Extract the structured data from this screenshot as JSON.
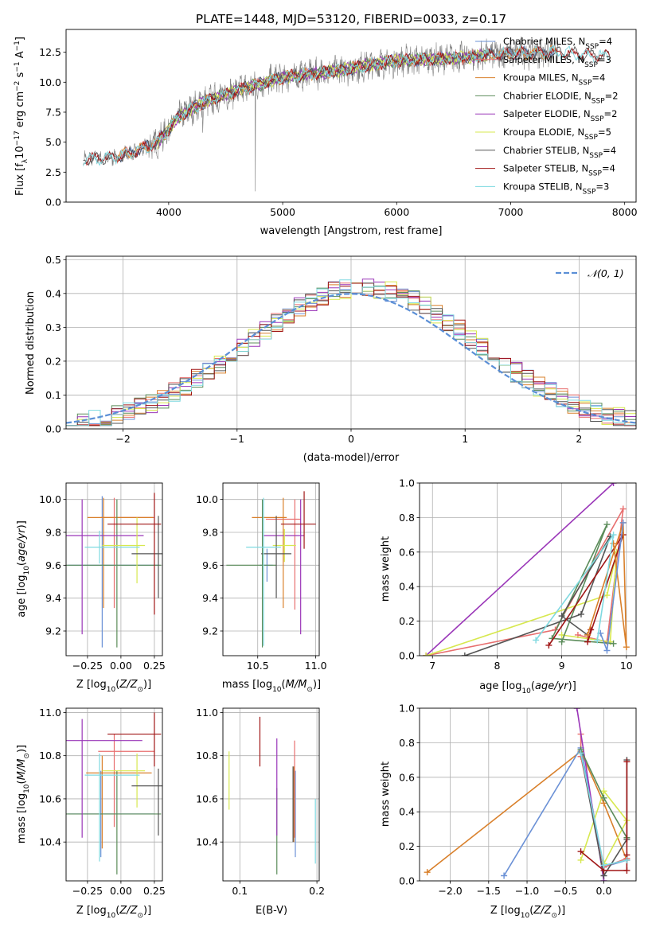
{
  "title": "PLATE=1448, MJD=53120, FIBERID=0033, z=0.17",
  "colors": {
    "chabrier_miles": "#6b91d6",
    "salpeter_miles": "#e86f6f",
    "kroupa_miles": "#d9802b",
    "chabrier_elodie": "#5b8c5a",
    "salpeter_elodie": "#9a36b8",
    "kroupa_elodie": "#d7e84f",
    "chabrier_stelib": "#555555",
    "salpeter_stelib": "#a01515",
    "kroupa_stelib": "#7fd9e0",
    "data": "#808080",
    "normal": "#5b8fd6"
  },
  "chart_data": [
    {
      "id": "spectrum",
      "type": "line",
      "xlabel": "wavelength [Angstrom, rest frame]",
      "ylabel": "Flux [f",
      "xlim": [
        3100,
        8100
      ],
      "ylim": [
        0,
        14.4
      ],
      "xticks": [
        4000,
        5000,
        6000,
        7000,
        8000
      ],
      "yticks": [
        0.0,
        2.5,
        5.0,
        7.5,
        10.0,
        12.5
      ],
      "legend": [
        "Chabrier MILES, N",
        "Salpeter MILES, N",
        "Kroupa MILES, N",
        "Chabrier ELODIE, N",
        "Salpeter ELODIE, N",
        "Kroupa ELODIE, N",
        "Chabrier STELIB, N",
        "Salpeter STELIB, N",
        "Kroupa STELIB, N"
      ],
      "legend_nssp": [
        4,
        3,
        4,
        2,
        2,
        5,
        4,
        4,
        3
      ],
      "continuum": {
        "x": [
          3250,
          3500,
          3700,
          3900,
          4100,
          4300,
          4600,
          5000,
          5500,
          6000,
          6500,
          7000,
          7400,
          7800
        ],
        "y": [
          3.6,
          3.7,
          4.2,
          5.0,
          7.2,
          8.3,
          9.3,
          10.4,
          11.0,
          11.8,
          12.0,
          12.4,
          12.5,
          12.2
        ]
      },
      "grid": false,
      "legend_placement": "top-right"
    },
    {
      "id": "residuals",
      "type": "step",
      "xlabel": "(data-model)/error",
      "ylabel": "Normed distribution",
      "xlim": [
        -2.5,
        2.5
      ],
      "ylim": [
        0,
        0.51
      ],
      "xticks": [
        -2,
        -1,
        0,
        1,
        2
      ],
      "yticks": [
        0.0,
        0.1,
        0.2,
        0.3,
        0.4,
        0.5
      ],
      "normal_label": "𝒩(0, 1)",
      "grid": true,
      "legend_placement": "top-right"
    },
    {
      "id": "age_vs_Z",
      "type": "errorbar",
      "xlabel": "Z [log",
      "ylabel": "age  [log",
      "xlim": [
        -0.41,
        0.31
      ],
      "ylim": [
        9.05,
        10.1
      ],
      "xticks": [
        -0.25,
        0.0,
        0.25
      ],
      "yticks": [
        9.2,
        9.4,
        9.6,
        9.8,
        10.0
      ],
      "points": [
        {
          "c": "chabrier_miles",
          "x": -0.14,
          "y": 9.6,
          "xerr": [
            0.26,
            0.42
          ],
          "yerr": [
            0.5,
            0.42
          ]
        },
        {
          "c": "salpeter_miles",
          "x": -0.05,
          "y": 9.89,
          "xerr": [
            0.1,
            0.3
          ],
          "yerr": [
            0.55,
            0.12
          ]
        },
        {
          "c": "kroupa_miles",
          "x": -0.13,
          "y": 9.89,
          "xerr": [
            0.12,
            0.37
          ],
          "yerr": [
            0.55,
            0.12
          ]
        },
        {
          "c": "chabrier_elodie",
          "x": -0.03,
          "y": 9.6,
          "xerr": [
            0.38,
            0.33
          ],
          "yerr": [
            0.5,
            0.4
          ]
        },
        {
          "c": "salpeter_elodie",
          "x": -0.29,
          "y": 9.78,
          "xerr": [
            0.12,
            0.46
          ],
          "yerr": [
            0.6,
            0.22
          ]
        },
        {
          "c": "kroupa_elodie",
          "x": 0.12,
          "y": 9.72,
          "xerr": [
            0.26,
            0.06
          ],
          "yerr": [
            0.23,
            0.17
          ]
        },
        {
          "c": "chabrier_stelib",
          "x": 0.28,
          "y": 9.67,
          "xerr": [
            0.2,
            0.05
          ],
          "yerr": [
            0.27,
            0.23
          ]
        },
        {
          "c": "salpeter_stelib",
          "x": 0.25,
          "y": 9.85,
          "xerr": [
            0.35,
            0.05
          ],
          "yerr": [
            0.55,
            0.19
          ]
        },
        {
          "c": "kroupa_stelib",
          "x": -0.16,
          "y": 9.71,
          "xerr": [
            0.11,
            0.3
          ],
          "yerr": [
            0.1,
            0.1
          ]
        }
      ]
    },
    {
      "id": "age_vs_mass",
      "type": "errorbar",
      "xlabel": "mass [log",
      "ylabel": "",
      "xlim": [
        10.2,
        11.03
      ],
      "ylim": [
        9.05,
        10.1
      ],
      "xticks": [
        10.5,
        11.0
      ],
      "yticks": [
        9.2,
        9.4,
        9.6,
        9.8,
        10.0
      ],
      "points": [
        {
          "c": "chabrier_miles",
          "x": 10.58,
          "y": 9.6,
          "xerr": [
            0.06,
            0.05
          ],
          "yerr": [
            0.1,
            0.1
          ]
        },
        {
          "c": "salpeter_miles",
          "x": 10.82,
          "y": 9.88,
          "xerr": [
            0.25,
            0.05
          ],
          "yerr": [
            0.55,
            0.12
          ]
        },
        {
          "c": "kroupa_miles",
          "x": 10.72,
          "y": 9.89,
          "xerr": [
            0.27,
            0.03
          ],
          "yerr": [
            0.55,
            0.12
          ]
        },
        {
          "c": "chabrier_elodie",
          "x": 10.54,
          "y": 9.6,
          "xerr": [
            0.31,
            0.12
          ],
          "yerr": [
            0.5,
            0.4
          ]
        },
        {
          "c": "salpeter_elodie",
          "x": 10.87,
          "y": 9.78,
          "xerr": [
            0.32,
            0.03
          ],
          "yerr": [
            0.6,
            0.22
          ]
        },
        {
          "c": "kroupa_elodie",
          "x": 10.73,
          "y": 9.72,
          "xerr": [
            0.1,
            0.1
          ],
          "yerr": [
            0.1,
            0.1
          ]
        },
        {
          "c": "chabrier_stelib",
          "x": 10.66,
          "y": 9.67,
          "xerr": [
            0.13,
            0.13
          ],
          "yerr": [
            0.27,
            0.23
          ]
        },
        {
          "c": "salpeter_stelib",
          "x": 10.9,
          "y": 9.85,
          "xerr": [
            0.2,
            0.1
          ],
          "yerr": [
            0.15,
            0.2
          ]
        },
        {
          "c": "kroupa_stelib",
          "x": 10.55,
          "y": 9.71,
          "xerr": [
            0.15,
            0.15
          ],
          "yerr": [
            0.6,
            0.3
          ]
        }
      ]
    },
    {
      "id": "mass_weight_vs_age",
      "type": "line",
      "xlabel": "age  [log",
      "ylabel": "mass weight",
      "xlim": [
        6.8,
        10.15
      ],
      "ylim": [
        0,
        1.0
      ],
      "xticks": [
        7,
        8,
        9,
        10
      ],
      "yticks": [
        0.0,
        0.2,
        0.4,
        0.6,
        0.8,
        1.0
      ],
      "grid": true,
      "series": [
        {
          "c": "salpeter_elodie",
          "x": [
            6.9,
            9.8
          ],
          "y": [
            0.0,
            1.0
          ]
        },
        {
          "c": "salpeter_miles",
          "x": [
            6.9,
            8.9,
            9.95,
            9.7,
            9.25
          ],
          "y": [
            0.0,
            0.15,
            0.85,
            0.08,
            0.12
          ]
        },
        {
          "c": "kroupa_elodie",
          "x": [
            6.9,
            9.7,
            9.85,
            9.75,
            9.0
          ],
          "y": [
            0.0,
            0.35,
            0.6,
            0.08,
            0.12
          ]
        },
        {
          "c": "chabrier_elodie",
          "x": [
            9.0,
            9.7,
            8.85,
            9.8
          ],
          "y": [
            0.08,
            0.76,
            0.1,
            0.07
          ]
        },
        {
          "c": "chabrier_stelib",
          "x": [
            7.5,
            9.3,
            9.75,
            9.0,
            9.4
          ],
          "y": [
            0.0,
            0.24,
            0.69,
            0.23,
            0.12
          ]
        },
        {
          "c": "salpeter_stelib",
          "x": [
            8.8,
            9.95,
            9.4,
            9.45
          ],
          "y": [
            0.06,
            0.7,
            0.08,
            0.15
          ]
        },
        {
          "c": "kroupa_miles",
          "x": [
            9.8,
            10.0,
            9.95,
            9.4
          ],
          "y": [
            0.65,
            0.05,
            0.77,
            0.12
          ]
        },
        {
          "c": "chabrier_miles",
          "x": [
            9.95,
            9.7,
            9.6
          ],
          "y": [
            0.77,
            0.03,
            0.13
          ]
        },
        {
          "c": "kroupa_stelib",
          "x": [
            8.6,
            9.8,
            9.55
          ],
          "y": [
            0.09,
            0.7,
            0.09
          ]
        }
      ]
    },
    {
      "id": "mass_vs_Z",
      "type": "errorbar",
      "xlabel": "Z [log",
      "ylabel": "mass [log",
      "xlim": [
        -0.41,
        0.31
      ],
      "ylim": [
        10.22,
        11.02
      ],
      "xticks": [
        -0.25,
        0.0,
        0.25
      ],
      "yticks": [
        10.4,
        10.6,
        10.8,
        11.0
      ],
      "points": [
        {
          "c": "chabrier_miles",
          "x": -0.15,
          "y": 10.53,
          "xerr": [
            0.25,
            0.4
          ],
          "yerr": [
            0.2,
            0.2
          ]
        },
        {
          "c": "salpeter_miles",
          "x": -0.05,
          "y": 10.82,
          "xerr": [
            0.12,
            0.3
          ],
          "yerr": [
            0.35,
            0.08
          ]
        },
        {
          "c": "kroupa_miles",
          "x": -0.14,
          "y": 10.72,
          "xerr": [
            0.12,
            0.37
          ],
          "yerr": [
            0.35,
            0.08
          ]
        },
        {
          "c": "chabrier_elodie",
          "x": -0.03,
          "y": 10.53,
          "xerr": [
            0.38,
            0.33
          ],
          "yerr": [
            0.28,
            0.2
          ]
        },
        {
          "c": "salpeter_elodie",
          "x": -0.29,
          "y": 10.87,
          "xerr": [
            0.12,
            0.45
          ],
          "yerr": [
            0.45,
            0.1
          ]
        },
        {
          "c": "kroupa_elodie",
          "x": 0.12,
          "y": 10.73,
          "xerr": [
            0.26,
            0.06
          ],
          "yerr": [
            0.17,
            0.08
          ]
        },
        {
          "c": "chabrier_stelib",
          "x": 0.28,
          "y": 10.66,
          "xerr": [
            0.2,
            0.05
          ],
          "yerr": [
            0.23,
            0.08
          ]
        },
        {
          "c": "salpeter_stelib",
          "x": 0.25,
          "y": 10.9,
          "xerr": [
            0.35,
            0.05
          ],
          "yerr": [
            0.15,
            0.1
          ]
        },
        {
          "c": "kroupa_stelib",
          "x": -0.16,
          "y": 10.71,
          "xerr": [
            0.11,
            0.3
          ],
          "yerr": [
            0.4,
            0.1
          ]
        }
      ]
    },
    {
      "id": "mass_vs_EBV",
      "type": "errorbar",
      "xlabel": "E(B-V)",
      "ylabel": "",
      "xlim": [
        0.078,
        0.203
      ],
      "ylim": [
        10.22,
        11.02
      ],
      "xticks": [
        0.1,
        0.2
      ],
      "yticks": [
        10.4,
        10.6,
        10.8,
        11.0
      ],
      "points": [
        {
          "c": "chabrier_miles",
          "x": 0.172,
          "y": 10.53,
          "xerr": [
            0,
            0
          ],
          "yerr": [
            0.2,
            0.2
          ]
        },
        {
          "c": "salpeter_miles",
          "x": 0.171,
          "y": 10.72,
          "xerr": [
            0,
            0
          ],
          "yerr": [
            0.3,
            0.15
          ]
        },
        {
          "c": "kroupa_miles",
          "x": 0.17,
          "y": 10.6,
          "xerr": [
            0,
            0
          ],
          "yerr": [
            0.2,
            0.15
          ]
        },
        {
          "c": "chabrier_elodie",
          "x": 0.148,
          "y": 10.45,
          "xerr": [
            0,
            0
          ],
          "yerr": [
            0.2,
            0.2
          ]
        },
        {
          "c": "salpeter_elodie",
          "x": 0.148,
          "y": 10.65,
          "xerr": [
            0,
            0
          ],
          "yerr": [
            0.22,
            0.23
          ]
        },
        {
          "c": "kroupa_elodie",
          "x": 0.086,
          "y": 10.69,
          "xerr": [
            0,
            0
          ],
          "yerr": [
            0.14,
            0.13
          ]
        },
        {
          "c": "chabrier_stelib",
          "x": 0.169,
          "y": 10.55,
          "xerr": [
            0,
            0
          ],
          "yerr": [
            0.15,
            0.2
          ]
        },
        {
          "c": "salpeter_stelib",
          "x": 0.126,
          "y": 10.86,
          "xerr": [
            0,
            0
          ],
          "yerr": [
            0.11,
            0.12
          ]
        },
        {
          "c": "kroupa_stelib",
          "x": 0.198,
          "y": 10.4,
          "xerr": [
            0,
            0
          ],
          "yerr": [
            0.1,
            0.2
          ]
        }
      ]
    },
    {
      "id": "mass_weight_vs_Z",
      "type": "line",
      "xlabel": "Z [log",
      "ylabel": "mass weight",
      "xlim": [
        -2.4,
        0.42
      ],
      "ylim": [
        0,
        1.0
      ],
      "xticks": [
        -2.0,
        -1.5,
        -1.0,
        -0.5,
        0.0
      ],
      "yticks": [
        0.0,
        0.2,
        0.4,
        0.6,
        0.8,
        1.0
      ],
      "grid": true,
      "series": [
        {
          "c": "kroupa_miles",
          "x": [
            -2.3,
            -0.3,
            0.0,
            0.3
          ],
          "y": [
            0.05,
            0.75,
            0.45,
            0.12
          ]
        },
        {
          "c": "chabrier_miles",
          "x": [
            -1.3,
            -0.3,
            0.0,
            0.3
          ],
          "y": [
            0.03,
            0.77,
            0.08,
            0.12
          ]
        },
        {
          "c": "salpeter_miles",
          "x": [
            -0.3,
            -0.3,
            0.0,
            0.3
          ],
          "y": [
            0.85,
            0.72,
            0.08,
            0.13
          ]
        },
        {
          "c": "salpeter_elodie",
          "x": [
            -0.35,
            0.0
          ],
          "y": [
            1.0,
            0.0
          ]
        },
        {
          "c": "kroupa_elodie",
          "x": [
            -0.3,
            0.0,
            0.3,
            0.0
          ],
          "y": [
            0.12,
            0.52,
            0.35,
            0.1
          ]
        },
        {
          "c": "chabrier_elodie",
          "x": [
            -0.3,
            0.0,
            0.3
          ],
          "y": [
            0.76,
            0.48,
            0.25
          ]
        },
        {
          "c": "chabrier_stelib",
          "x": [
            -0.3,
            0.0,
            0.3,
            0.3
          ],
          "y": [
            0.74,
            0.03,
            0.24,
            0.7
          ]
        },
        {
          "c": "salpeter_stelib",
          "x": [
            -0.3,
            0.0,
            0.3,
            0.3,
            0.3
          ],
          "y": [
            0.17,
            0.06,
            0.06,
            0.69,
            0.15
          ]
        },
        {
          "c": "kroupa_stelib",
          "x": [
            -0.3,
            0.0,
            0.3
          ],
          "y": [
            0.74,
            0.09,
            0.12
          ]
        }
      ]
    }
  ]
}
